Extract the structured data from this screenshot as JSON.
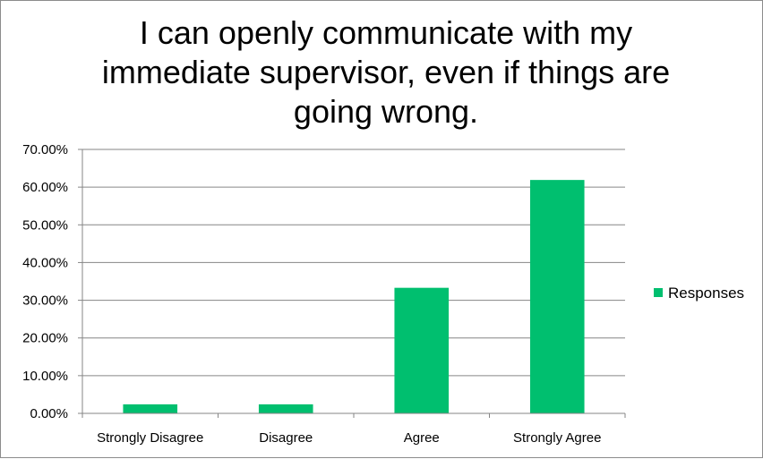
{
  "chart_data": {
    "type": "bar",
    "title": "I can openly communicate with my\nimmediate supervisor, even if things are\ngoing wrong.",
    "categories": [
      "Strongly Disagree",
      "Disagree",
      "Agree",
      "Strongly Agree"
    ],
    "series": [
      {
        "name": "Responses",
        "values": [
          2.4,
          2.4,
          33.3,
          61.9
        ]
      }
    ],
    "ylim": [
      0,
      70
    ],
    "yticks": [
      "0.00%",
      "10.00%",
      "20.00%",
      "30.00%",
      "40.00%",
      "50.00%",
      "60.00%",
      "70.00%"
    ],
    "grid": true,
    "legend": "right",
    "colors": {
      "bar": "#00BF6F",
      "grid": "#868686",
      "axis": "#868686"
    }
  }
}
